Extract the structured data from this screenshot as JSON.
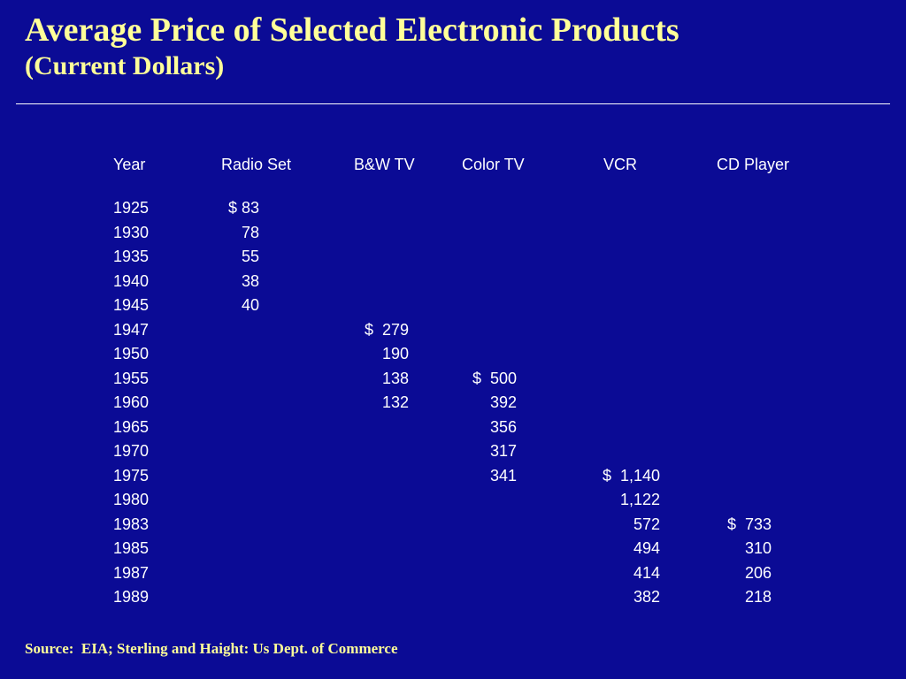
{
  "slide": {
    "title_line1": "Average Price of Selected Electronic Products",
    "title_line2": "(Current Dollars)",
    "source": "Source:  EIA; Sterling and Haight: Us Dept. of Commerce"
  },
  "table": {
    "headers": [
      "Year",
      "Radio Set",
      "B&W TV",
      "Color TV",
      "VCR",
      "CD Player"
    ],
    "rows": [
      [
        "1925",
        "$ 83",
        "",
        "",
        "",
        ""
      ],
      [
        "1930",
        "78",
        "",
        "",
        "",
        ""
      ],
      [
        "1935",
        "55",
        "",
        "",
        "",
        ""
      ],
      [
        "1940",
        "38",
        "",
        "",
        "",
        ""
      ],
      [
        "1945",
        "40",
        "",
        "",
        "",
        ""
      ],
      [
        "1947",
        "",
        "$  279",
        "",
        "",
        ""
      ],
      [
        "1950",
        "",
        "190",
        "",
        "",
        ""
      ],
      [
        "1955",
        "",
        "138",
        "$  500",
        "",
        ""
      ],
      [
        "1960",
        "",
        "132",
        "392",
        "",
        ""
      ],
      [
        "1965",
        "",
        "",
        "356",
        "",
        ""
      ],
      [
        "1970",
        "",
        "",
        "317",
        "",
        ""
      ],
      [
        "1975",
        "",
        "",
        "341",
        "$  1,140",
        ""
      ],
      [
        "1980",
        "",
        "",
        "",
        "1,122",
        ""
      ],
      [
        "1983",
        "",
        "",
        "",
        "572",
        "$  733"
      ],
      [
        "1985",
        "",
        "",
        "",
        "494",
        "310"
      ],
      [
        "1987",
        "",
        "",
        "",
        "414",
        "206"
      ],
      [
        "1989",
        "",
        "",
        "",
        "382",
        "218"
      ]
    ]
  },
  "colors": {
    "background": "#0b0b95",
    "title": "#ffff99",
    "text": "#ffffff"
  }
}
